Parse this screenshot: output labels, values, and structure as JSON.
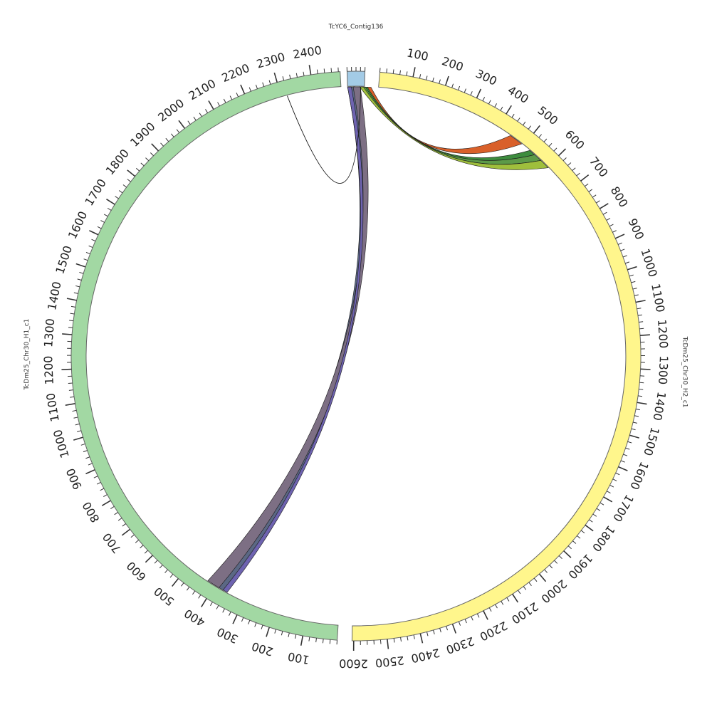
{
  "colors": {
    "background": "#ffffff",
    "tick": "#333333",
    "tick_label": "#222222",
    "segment_outline": "#666666",
    "ribbon_outline": "#1a1a1a"
  },
  "segments": [
    {
      "name": "TcYC6_Contig136",
      "length": 40,
      "color": "#a3cbe6",
      "tick_labels": []
    },
    {
      "name": "TcDm25_Chr30_H2_c1",
      "length": 2605,
      "color": "#fff68c",
      "tick_labels": [
        "100",
        "200",
        "300",
        "400",
        "500",
        "600",
        "700",
        "800",
        "900",
        "1000",
        "1100",
        "1200",
        "1300",
        "1400",
        "1500",
        "1600",
        "1700",
        "1800",
        "1900",
        "2000",
        "2100",
        "2200",
        "2300",
        "2400",
        "2500",
        "2600"
      ]
    },
    {
      "name": "TcDm25_Chr30_H1_c1",
      "length": 2485,
      "color": "#a2d8a3",
      "tick_labels": [
        "100",
        "200",
        "300",
        "400",
        "500",
        "600",
        "700",
        "800",
        "900",
        "1000",
        "1100",
        "1200",
        "1300",
        "1400",
        "1500",
        "1600",
        "1700",
        "1800",
        "1900",
        "2000",
        "2100",
        "2200",
        "2300",
        "2400"
      ]
    }
  ],
  "links": [
    {
      "color": "#d9602a",
      "thick": true
    },
    {
      "color": "#3d8c3e",
      "thick": true
    },
    {
      "color": "#5c9a48",
      "thick": true
    },
    {
      "color": "#9fbf3c",
      "thick": true
    },
    {
      "color": "#5b6884",
      "thick": true
    },
    {
      "color": "#7d6f84",
      "thick": true
    },
    {
      "color": "#6e63b0",
      "thick": true
    },
    {
      "color": "none",
      "thick": false
    }
  ]
}
